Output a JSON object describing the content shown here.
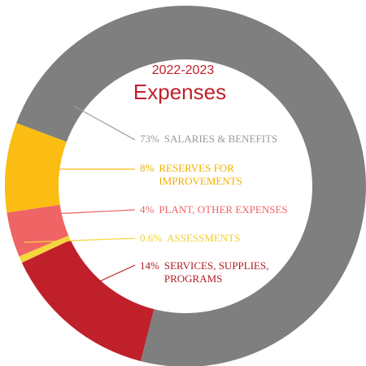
{
  "chart_data": {
    "type": "pie",
    "subtitle": "2022-2023",
    "title": "Expenses",
    "categories": [
      "SALARIES & BENEFITS",
      "RESERVES FOR IMPROVEMENTS",
      "PLANT, OTHER EXPENSES",
      "ASSESSMENTS",
      "SERVICES, SUPPLIES, PROGRAMS"
    ],
    "values": [
      73,
      8,
      4,
      0.6,
      14
    ],
    "value_labels": [
      "73%",
      "8%",
      "4%",
      "0.6%",
      "14%"
    ],
    "colors": [
      "#7f7f7f",
      "#fbbc13",
      "#ef6464",
      "#f5d63d",
      "#c0202a"
    ],
    "donut": true
  }
}
